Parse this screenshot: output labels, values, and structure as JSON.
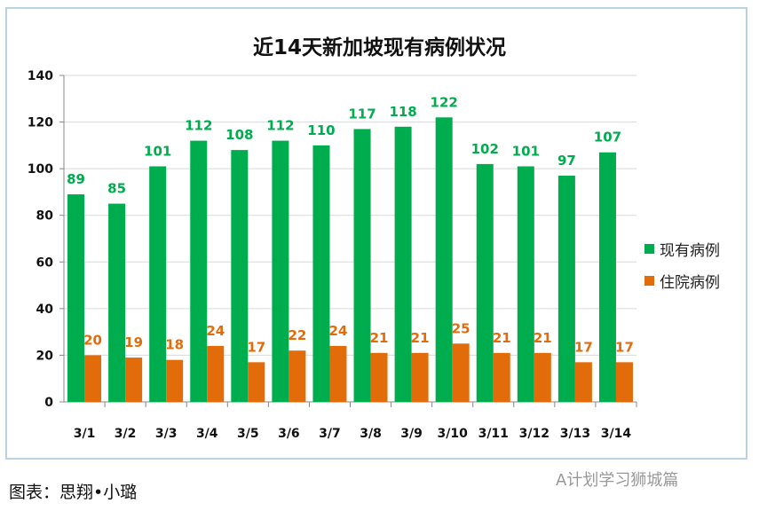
{
  "chart_data": {
    "type": "bar",
    "title": "近14天新加坡现有病例状况",
    "categories": [
      "3/1",
      "3/2",
      "3/3",
      "3/4",
      "3/5",
      "3/6",
      "3/7",
      "3/8",
      "3/9",
      "3/10",
      "3/11",
      "3/12",
      "3/13",
      "3/14"
    ],
    "series": [
      {
        "name": "现有病例",
        "color": "#00ad4e",
        "values": [
          89,
          85,
          101,
          112,
          108,
          112,
          110,
          117,
          118,
          122,
          102,
          101,
          97,
          107
        ]
      },
      {
        "name": "住院病例",
        "color": "#e36c0a",
        "values": [
          20,
          19,
          18,
          24,
          17,
          22,
          24,
          21,
          21,
          25,
          21,
          21,
          17,
          17
        ]
      }
    ],
    "ylim": [
      0,
      140
    ],
    "yticks": [
      0,
      20,
      40,
      60,
      80,
      100,
      120,
      140
    ],
    "grid": true,
    "legend": "right"
  },
  "caption": "图表：思翔•小璐",
  "watermark": "A计划学习狮城篇"
}
